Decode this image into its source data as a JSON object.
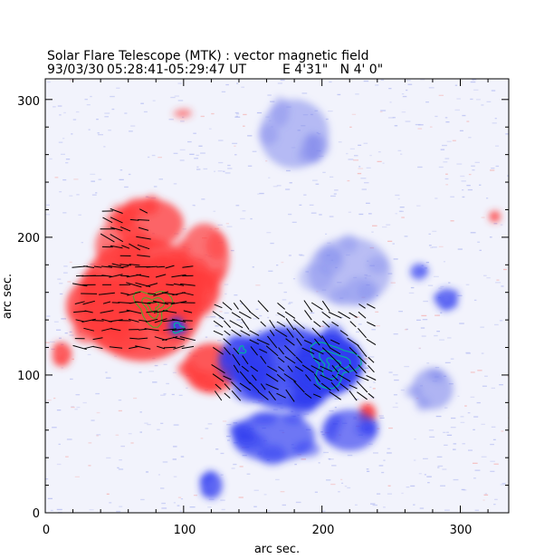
{
  "chart_data": {
    "type": "heatmap",
    "title": "Solar Flare Telescope (MTK) : vector magnetic field",
    "subtitle_date": "93/03/30",
    "subtitle_time": "05:28:41-05:29:47 UT",
    "subtitle_position": "E 4'31\"   N 4' 0\"",
    "xlabel": "arc sec.",
    "ylabel": "arc sec.",
    "xlim": [
      0,
      335
    ],
    "ylim": [
      0,
      315
    ],
    "x_ticks": [
      0,
      100,
      200,
      300
    ],
    "y_ticks": [
      0,
      100,
      200,
      300
    ],
    "colors": {
      "positive": "#ff3b3b",
      "negative": "#2f3cf0",
      "weak_negative": "#b8bff2",
      "vectors": "#000000",
      "contour_positive": "#5aa02c",
      "contour_negative": "#00b0a0",
      "frame": "#000000"
    },
    "positive_regions": [
      {
        "x": 70,
        "y": 155,
        "rx": 45,
        "ry": 45,
        "strength": 0.85
      },
      {
        "x": 85,
        "y": 160,
        "rx": 22,
        "ry": 28,
        "strength": 1.0
      },
      {
        "x": 40,
        "y": 150,
        "rx": 25,
        "ry": 22,
        "strength": 0.8
      },
      {
        "x": 75,
        "y": 210,
        "rx": 25,
        "ry": 18,
        "strength": 0.7
      },
      {
        "x": 115,
        "y": 185,
        "rx": 18,
        "ry": 25,
        "strength": 0.6
      },
      {
        "x": 120,
        "y": 105,
        "rx": 20,
        "ry": 18,
        "strength": 0.85
      },
      {
        "x": 12,
        "y": 115,
        "rx": 7,
        "ry": 9,
        "strength": 0.7
      },
      {
        "x": 233,
        "y": 72,
        "rx": 6,
        "ry": 7,
        "strength": 0.9
      },
      {
        "x": 325,
        "y": 215,
        "rx": 4,
        "ry": 4,
        "strength": 0.8
      },
      {
        "x": 100,
        "y": 290,
        "rx": 6,
        "ry": 3,
        "strength": 0.4
      }
    ],
    "negative_regions": [
      {
        "x": 205,
        "y": 108,
        "rx": 25,
        "ry": 22,
        "strength": 1.0
      },
      {
        "x": 175,
        "y": 105,
        "rx": 38,
        "ry": 30,
        "strength": 0.8
      },
      {
        "x": 145,
        "y": 110,
        "rx": 20,
        "ry": 18,
        "strength": 0.75
      },
      {
        "x": 165,
        "y": 55,
        "rx": 30,
        "ry": 18,
        "strength": 0.55
      },
      {
        "x": 220,
        "y": 60,
        "rx": 20,
        "ry": 15,
        "strength": 0.5
      },
      {
        "x": 120,
        "y": 20,
        "rx": 8,
        "ry": 10,
        "strength": 0.7
      },
      {
        "x": 280,
        "y": 90,
        "rx": 15,
        "ry": 15,
        "strength": 0.4
      },
      {
        "x": 290,
        "y": 155,
        "rx": 8,
        "ry": 8,
        "strength": 0.6
      },
      {
        "x": 270,
        "y": 175,
        "rx": 6,
        "ry": 6,
        "strength": 0.55
      },
      {
        "x": 95,
        "y": 135,
        "rx": 6,
        "ry": 6,
        "strength": 0.9
      },
      {
        "x": 180,
        "y": 275,
        "rx": 25,
        "ry": 25,
        "strength": 0.3
      },
      {
        "x": 220,
        "y": 175,
        "rx": 30,
        "ry": 25,
        "strength": 0.25
      }
    ],
    "vector_field_regions": [
      {
        "xmin": 25,
        "xmax": 105,
        "ymin": 120,
        "ymax": 180,
        "angle_deg": 0
      },
      {
        "xmin": 45,
        "xmax": 75,
        "ymin": 180,
        "ymax": 225,
        "angle_deg": -15
      },
      {
        "xmin": 125,
        "xmax": 240,
        "ymin": 85,
        "ymax": 150,
        "angle_deg": -40
      }
    ],
    "contours": [
      {
        "polarity": "positive",
        "center": [
          78,
          150
        ],
        "radii": [
          14,
          8,
          4
        ]
      },
      {
        "polarity": "negative",
        "center": [
          208,
          108
        ],
        "radii": [
          18,
          11,
          5
        ]
      },
      {
        "polarity": "negative",
        "center": [
          96,
          134
        ],
        "radii": [
          4
        ]
      },
      {
        "polarity": "negative",
        "center": [
          142,
          118
        ],
        "radii": [
          3
        ]
      }
    ]
  }
}
